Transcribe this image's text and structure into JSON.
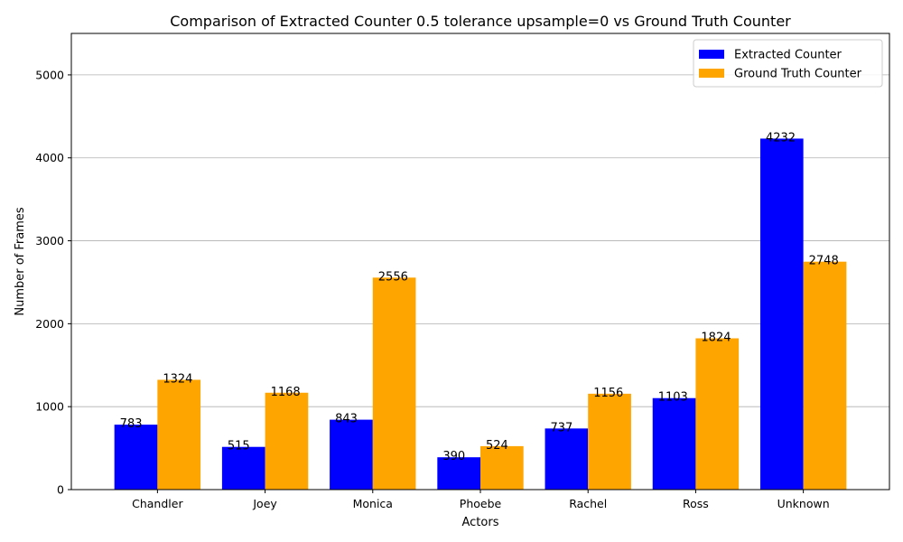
{
  "chart_data": {
    "type": "bar",
    "title": "Comparison of Extracted Counter 0.5 tolerance upsample=0 vs Ground Truth Counter",
    "xlabel": "Actors",
    "ylabel": "Number of Frames",
    "categories": [
      "Chandler",
      "Joey",
      "Monica",
      "Phoebe",
      "Rachel",
      "Ross",
      "Unknown"
    ],
    "series": [
      {
        "name": "Extracted Counter",
        "color": "#0000ff",
        "values": [
          783,
          515,
          843,
          390,
          737,
          1103,
          4232
        ]
      },
      {
        "name": "Ground Truth Counter",
        "color": "#ffa500",
        "values": [
          1324,
          1168,
          2556,
          524,
          1156,
          1824,
          2748
        ]
      }
    ],
    "ylim": [
      0,
      5500
    ],
    "yticks": [
      0,
      1000,
      2000,
      3000,
      4000,
      5000
    ],
    "grid": "y",
    "legend_position": "top-right"
  }
}
